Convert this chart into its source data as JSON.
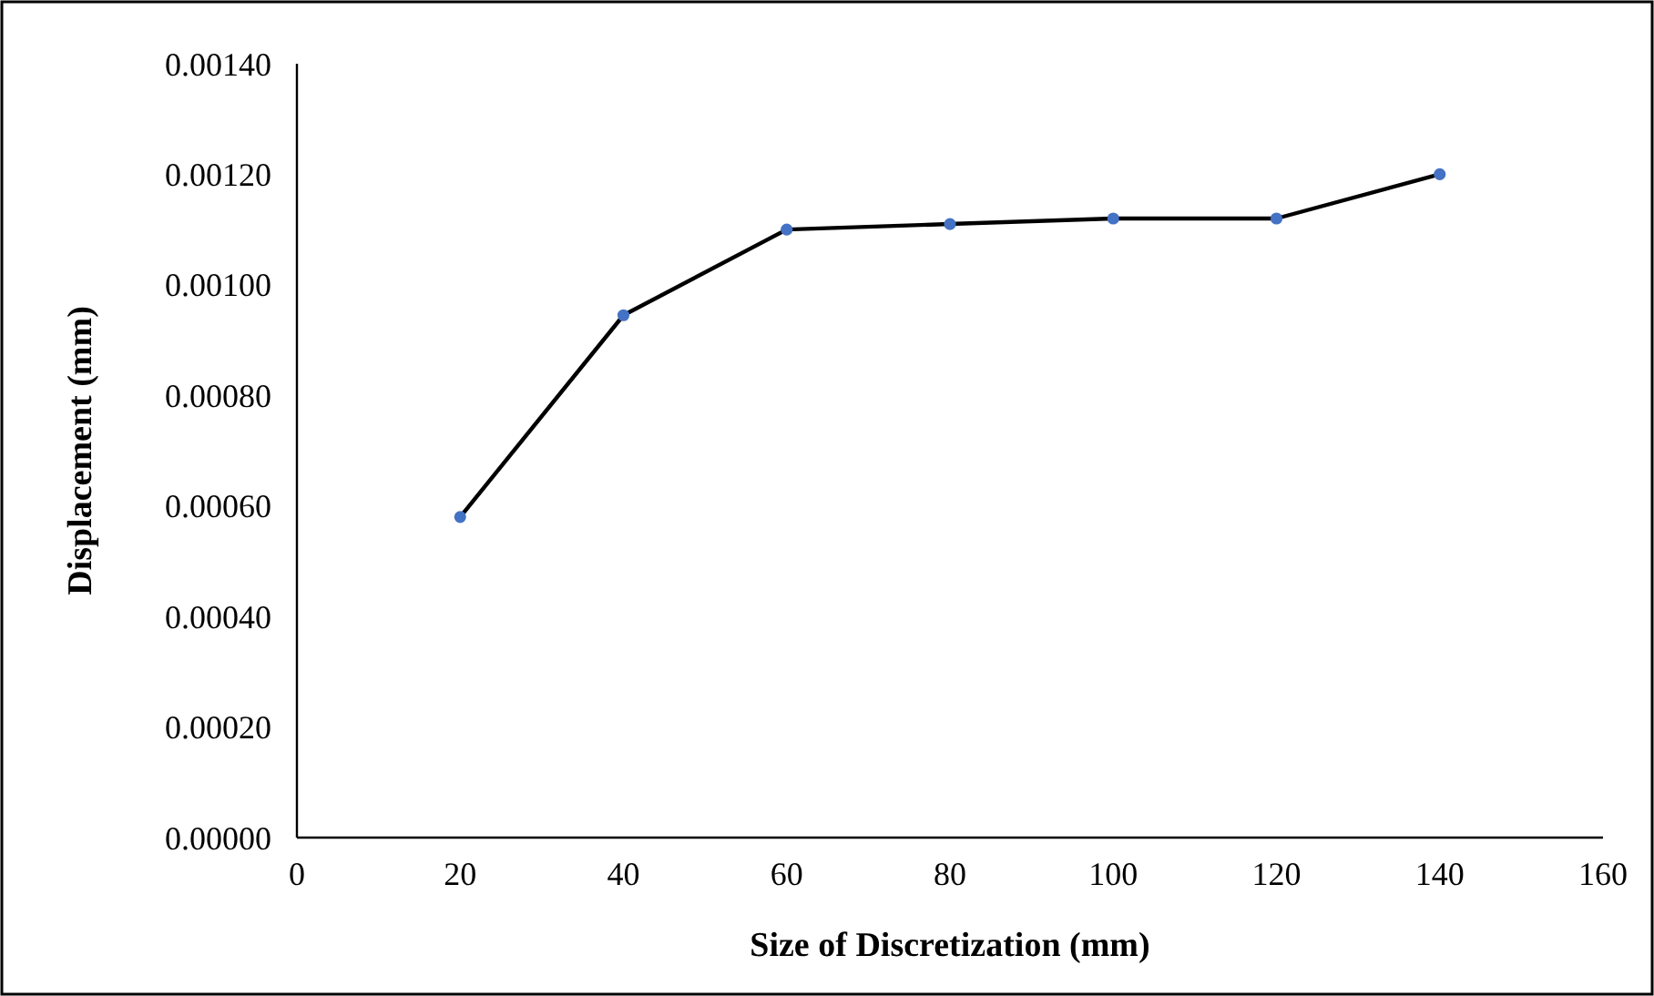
{
  "chart_data": {
    "type": "line",
    "xlabel": "Size of Discretization (mm)",
    "ylabel": "Displacement (mm)",
    "xlim": [
      0,
      160
    ],
    "xticks": [
      0,
      20,
      40,
      60,
      80,
      100,
      120,
      140,
      160
    ],
    "ylim": [
      0,
      0.0014
    ],
    "yticks": [
      {
        "value": 0,
        "label": "0.00000"
      },
      {
        "value": 0.0002,
        "label": "0.00020"
      },
      {
        "value": 0.0004,
        "label": "0.00040"
      },
      {
        "value": 0.0006,
        "label": "0.00060"
      },
      {
        "value": 0.0008,
        "label": "0.00080"
      },
      {
        "value": 0.001,
        "label": "0.00100"
      },
      {
        "value": 0.0012,
        "label": "0.00120"
      },
      {
        "value": 0.0014,
        "label": "0.00140"
      }
    ],
    "grid": false,
    "line_style": "solid",
    "series": [
      {
        "color": "#000000",
        "marker": "none",
        "x": [
          20,
          40,
          60,
          80,
          100,
          120,
          140
        ],
        "values": [
          0.00058,
          0.000945,
          0.0011,
          0.00111,
          0.00112,
          0.00112,
          0.0012
        ]
      },
      {
        "type": "scatter",
        "color": "#4472c4",
        "marker": "circle",
        "x": [
          20,
          40,
          60,
          80,
          100,
          120,
          140
        ],
        "values": [
          0.00058,
          0.000945,
          0.0011,
          0.00111,
          0.00112,
          0.00112,
          0.0012
        ]
      }
    ]
  }
}
